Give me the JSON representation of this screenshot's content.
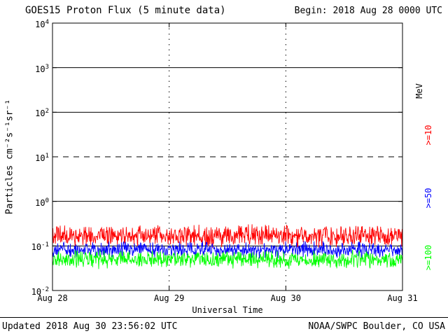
{
  "chart_data": {
    "type": "line",
    "title": "GOES15 Proton Flux (5 minute data)",
    "begin_label": "Begin: 2018 Aug 28 0000 UTC",
    "xlabel": "Universal Time",
    "ylabel": "Particles cm⁻²s⁻¹sr⁻¹",
    "unit_label": "MeV",
    "x_tick_labels": [
      "Aug 28",
      "Aug 29",
      "Aug 30",
      "Aug 31"
    ],
    "y_tick_exponents": [
      -2,
      -1,
      0,
      1,
      2,
      3,
      4
    ],
    "ylim": [
      0.01,
      10000
    ],
    "y_scale": "log",
    "x_range": {
      "start": "2018 Aug 28 0000 UTC",
      "days": 3,
      "cadence_minutes": 5
    },
    "points_per_series": 864,
    "grid": {
      "hlines": [
        {
          "value": 1000,
          "style": "solid"
        },
        {
          "value": 100,
          "style": "solid"
        },
        {
          "value": 10,
          "style": "dashed"
        },
        {
          "value": 1,
          "style": "solid"
        },
        {
          "value": 0.1,
          "style": "solid"
        }
      ],
      "vlines_days": [
        1,
        2
      ],
      "vline_style": "dotted"
    },
    "series": [
      {
        "name": ">=10",
        "color": "#ff0000",
        "baseline": 0.17,
        "log10_noise_amplitude": 0.28
      },
      {
        "name": ">=50",
        "color": "#0000ff",
        "baseline": 0.082,
        "log10_noise_amplitude": 0.2
      },
      {
        "name": ">=100",
        "color": "#00ff00",
        "baseline": 0.05,
        "log10_noise_amplitude": 0.22
      }
    ],
    "legend_position": "right"
  },
  "footer": {
    "updated": "Updated 2018 Aug 30 23:56:02 UTC",
    "credit": "NOAA/SWPC Boulder, CO USA"
  },
  "colors": {
    "background": "#ffffff",
    "axis": "#000000",
    "text": "#000000",
    "series_ge10": "#ff0000",
    "series_ge50": "#0000ff",
    "series_ge100": "#00ff00"
  }
}
